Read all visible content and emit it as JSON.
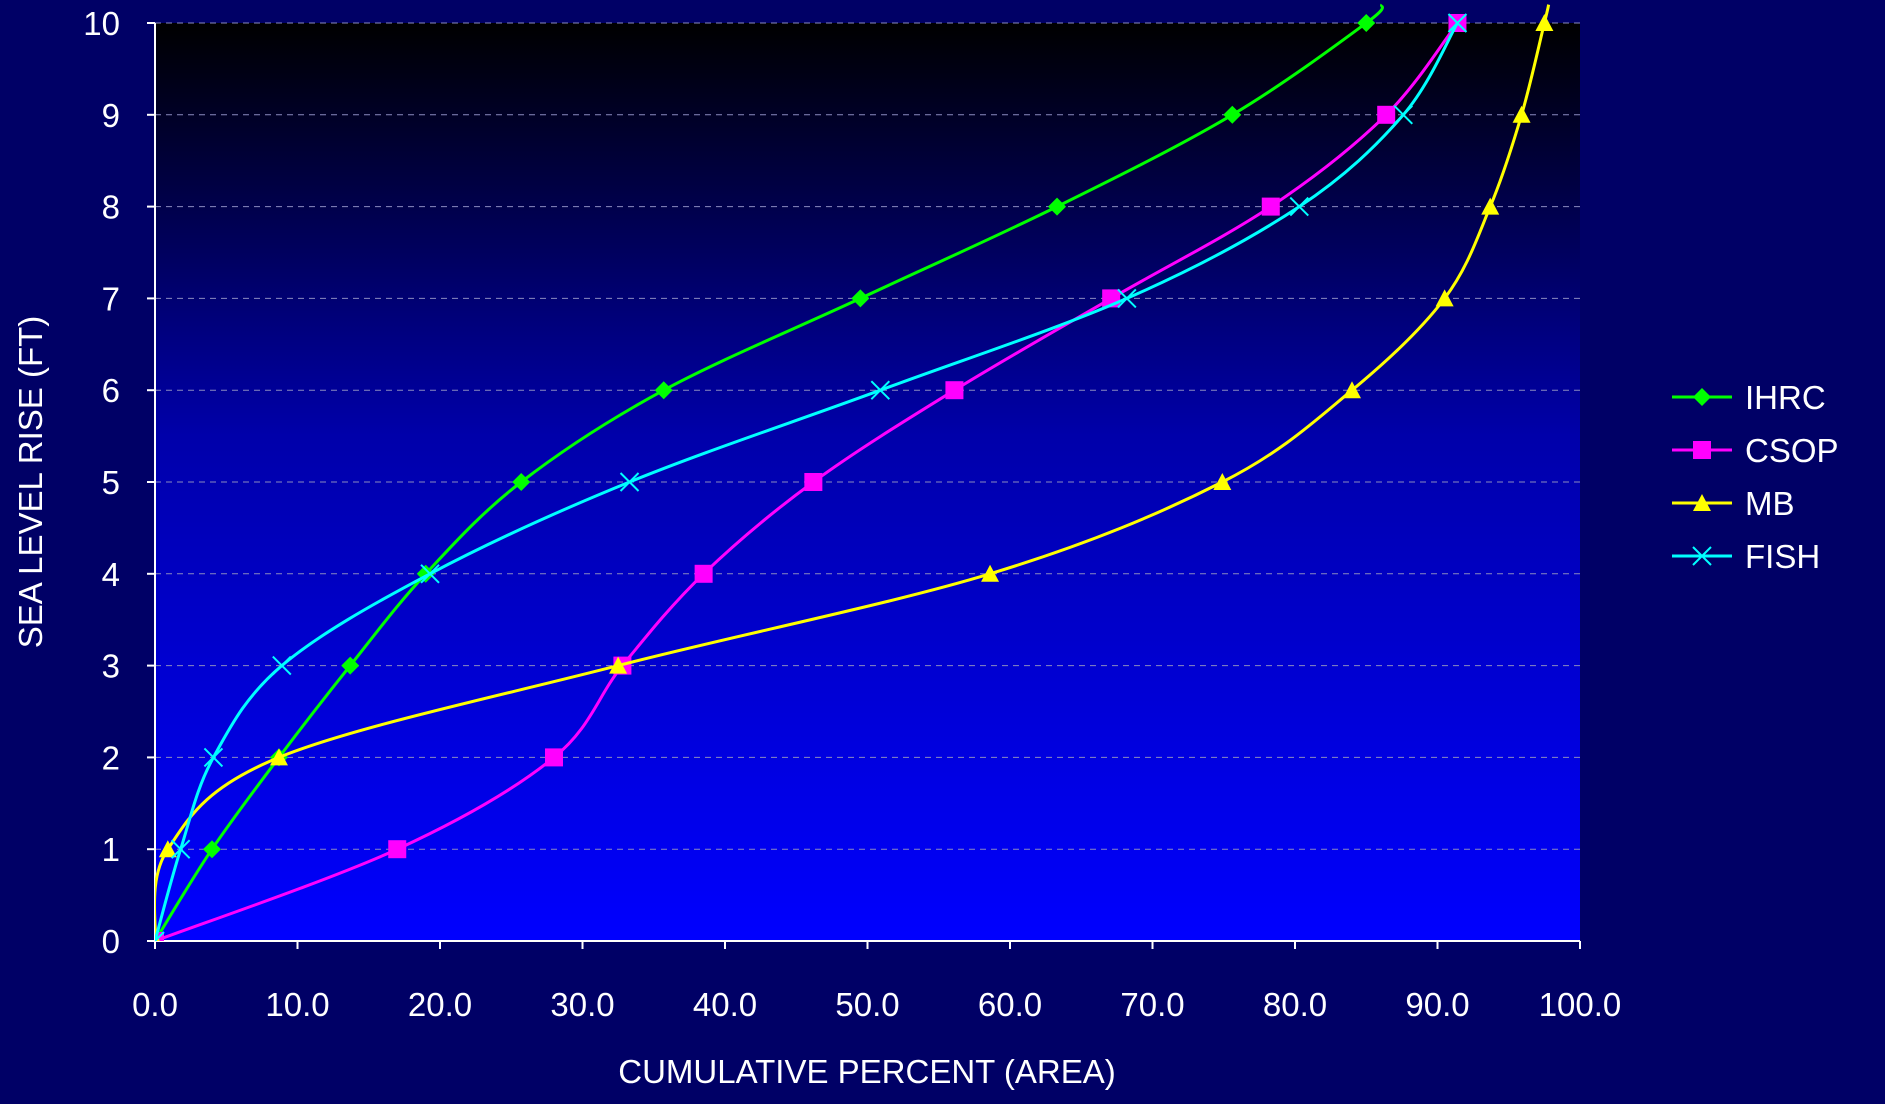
{
  "chart_data": {
    "type": "line",
    "title": "",
    "xlabel": "CUMULATIVE PERCENT (AREA)",
    "ylabel": "SEA LEVEL RISE (FT)",
    "xlim": [
      0,
      100
    ],
    "ylim": [
      0,
      10
    ],
    "x_ticks": [
      "0.0",
      "10.0",
      "20.0",
      "30.0",
      "40.0",
      "50.0",
      "60.0",
      "70.0",
      "80.0",
      "90.0",
      "100.0"
    ],
    "y_ticks": [
      "0",
      "1",
      "2",
      "3",
      "4",
      "5",
      "6",
      "7",
      "8",
      "9",
      "10"
    ],
    "grid": "horizontal dashed",
    "legend_position": "right",
    "series": [
      {
        "name": "IHRC",
        "color": "#00ff00",
        "marker": "diamond",
        "points": [
          [
            0,
            0
          ],
          [
            4,
            1
          ],
          [
            8.7,
            2
          ],
          [
            13.7,
            3
          ],
          [
            19,
            4
          ],
          [
            25.7,
            5
          ],
          [
            35.7,
            6
          ],
          [
            49.5,
            7
          ],
          [
            63.3,
            8
          ],
          [
            75.6,
            9
          ],
          [
            85,
            10
          ],
          [
            86.1,
            10.2
          ]
        ]
      },
      {
        "name": "CSOP",
        "color": "#ff00ff",
        "marker": "square",
        "points": [
          [
            0,
            0
          ],
          [
            17,
            1
          ],
          [
            28,
            2
          ],
          [
            32.8,
            3
          ],
          [
            38.5,
            4
          ],
          [
            46.2,
            5
          ],
          [
            56.1,
            6
          ],
          [
            67.1,
            7
          ],
          [
            78.3,
            8
          ],
          [
            86.4,
            9
          ],
          [
            91.4,
            10
          ]
        ]
      },
      {
        "name": "MB",
        "color": "#ffff00",
        "marker": "triangle",
        "points": [
          [
            0,
            0
          ],
          [
            0.9,
            1
          ],
          [
            8.7,
            2
          ],
          [
            32.5,
            3
          ],
          [
            58.6,
            4
          ],
          [
            74.9,
            5
          ],
          [
            84,
            6
          ],
          [
            90.5,
            7
          ],
          [
            93.7,
            8
          ],
          [
            95.9,
            9
          ],
          [
            97.5,
            10
          ],
          [
            97.8,
            10.2
          ]
        ]
      },
      {
        "name": "FISH",
        "color": "#00ffff",
        "marker": "x",
        "points": [
          [
            0,
            0
          ],
          [
            1.8,
            1
          ],
          [
            4.1,
            2
          ],
          [
            8.9,
            3
          ],
          [
            19.3,
            4
          ],
          [
            33.3,
            5
          ],
          [
            50.9,
            6
          ],
          [
            68.2,
            7
          ],
          [
            80.3,
            8
          ],
          [
            87.6,
            9
          ],
          [
            91.4,
            10
          ]
        ]
      }
    ]
  }
}
